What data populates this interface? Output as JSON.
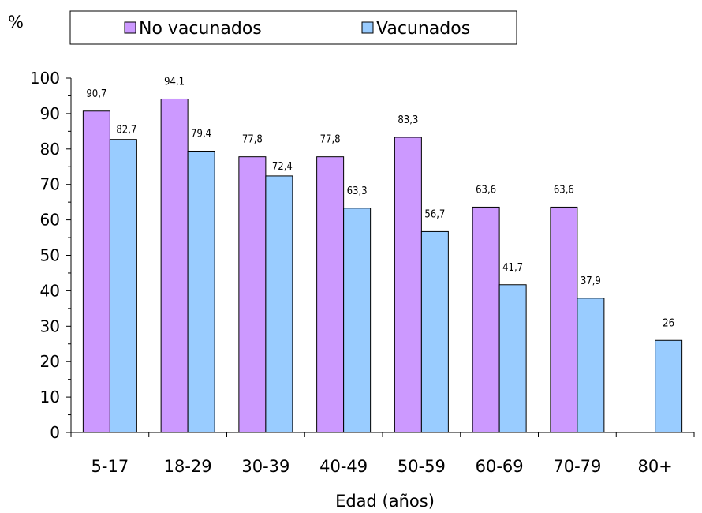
{
  "chart_data": {
    "type": "bar",
    "ylabel": "%",
    "xlabel": "Edad (años)",
    "categories": [
      "5-17",
      "18-29",
      "30-39",
      "40-49",
      "50-59",
      "60-69",
      "70-79",
      "80+"
    ],
    "series": [
      {
        "name": "No vacunados",
        "color": "#cc99ff",
        "values": [
          90.7,
          94.1,
          77.8,
          77.8,
          83.3,
          63.6,
          63.6,
          null
        ],
        "labels": [
          "90,7",
          "94,1",
          "77,8",
          "77,8",
          "83,3",
          "63,6",
          "63,6",
          ""
        ]
      },
      {
        "name": "Vacunados",
        "color": "#99ccff",
        "values": [
          82.7,
          79.4,
          72.4,
          63.3,
          56.7,
          41.7,
          37.9,
          26
        ],
        "labels": [
          "82,7",
          "79,4",
          "72,4",
          "63,3",
          "56,7",
          "41,7",
          "37,9",
          "26"
        ]
      }
    ],
    "ylim": [
      0,
      100
    ],
    "yticks": [
      "0",
      "10",
      "20",
      "30",
      "40",
      "50",
      "60",
      "70",
      "80",
      "90",
      "100"
    ],
    "grid": false,
    "legend_position": "top"
  }
}
